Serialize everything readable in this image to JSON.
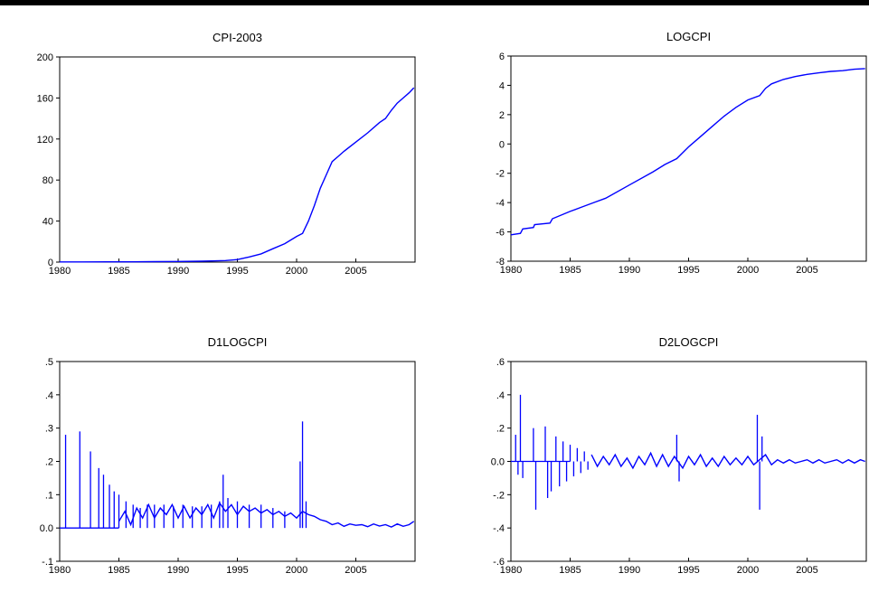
{
  "chart_data": [
    {
      "type": "line",
      "title": "CPI-2003",
      "ylim": [
        0,
        200
      ],
      "yticks": [
        0,
        40,
        80,
        120,
        160,
        200
      ],
      "xlim": [
        1980,
        2010
      ],
      "xticks": [
        1980,
        1985,
        1990,
        1995,
        2000,
        2005
      ],
      "grid": false,
      "color": "#0000ff",
      "series": [
        {
          "x": [
            1980,
            1982,
            1984,
            1986,
            1988,
            1990,
            1992,
            1994,
            1995,
            1996,
            1997,
            1998,
            1999,
            2000,
            2000.5,
            2001,
            2001.5,
            2002,
            2002.5,
            2003,
            2003.5,
            2004,
            2005,
            2006,
            2007,
            2007.5,
            2008,
            2008.5,
            2009,
            2009.5,
            2009.9
          ],
          "y": [
            0.2,
            0.2,
            0.3,
            0.3,
            0.4,
            0.6,
            0.9,
            1.5,
            2.5,
            5,
            8,
            13,
            18,
            25,
            28,
            40,
            55,
            72,
            85,
            98,
            103,
            108,
            117,
            126,
            136,
            140,
            148,
            155,
            160,
            165,
            170
          ]
        }
      ]
    },
    {
      "type": "line",
      "title": "LOGCPI",
      "ylim": [
        -8,
        6
      ],
      "yticks": [
        -8,
        -6,
        -4,
        -2,
        0,
        2,
        4,
        6
      ],
      "xlim": [
        1980,
        2010
      ],
      "xticks": [
        1980,
        1985,
        1990,
        1995,
        2000,
        2005
      ],
      "grid": false,
      "color": "#0000ff",
      "series": [
        {
          "x": [
            1980,
            1980.8,
            1981,
            1981.9,
            1982,
            1983.3,
            1983.5,
            1985,
            1986,
            1987,
            1988,
            1990,
            1992,
            1993,
            1994,
            1995,
            1996,
            1997,
            1998,
            1999,
            2000,
            2001,
            2001.5,
            2002,
            2003,
            2004,
            2005,
            2006,
            2007,
            2008,
            2009,
            2009.9
          ],
          "y": [
            -6.2,
            -6.1,
            -5.8,
            -5.7,
            -5.5,
            -5.4,
            -5.1,
            -4.6,
            -4.3,
            -4.0,
            -3.7,
            -2.8,
            -1.9,
            -1.4,
            -1.0,
            -0.2,
            0.5,
            1.2,
            1.9,
            2.5,
            3.0,
            3.3,
            3.8,
            4.1,
            4.4,
            4.6,
            4.75,
            4.85,
            4.95,
            5.0,
            5.1,
            5.14
          ]
        }
      ]
    },
    {
      "type": "line",
      "title": "D1LOGCPI",
      "ylim": [
        -0.1,
        0.5
      ],
      "yticks": [
        -0.1,
        0.0,
        0.1,
        0.2,
        0.3,
        0.4,
        0.5
      ],
      "ytick_labels": [
        "-.1",
        "0.0",
        ".1",
        ".2",
        ".3",
        ".4",
        ".5"
      ],
      "xlim": [
        1980,
        2010
      ],
      "xticks": [
        1980,
        1985,
        1990,
        1995,
        2000,
        2005
      ],
      "grid": false,
      "color": "#0000ff",
      "spikes": [
        [
          1980.5,
          0.28
        ],
        [
          1981.7,
          0.29
        ],
        [
          1982.6,
          0.23
        ],
        [
          1983.3,
          0.18
        ],
        [
          1983.7,
          0.16
        ],
        [
          1984.2,
          0.13
        ],
        [
          1984.6,
          0.11
        ],
        [
          1985.0,
          0.1
        ],
        [
          1985.6,
          0.08
        ],
        [
          1986.2,
          0.07
        ],
        [
          1986.8,
          0.06
        ],
        [
          1987.4,
          0.07
        ],
        [
          1988.0,
          0.07
        ],
        [
          1988.8,
          0.07
        ],
        [
          1989.6,
          0.065
        ],
        [
          1990.4,
          0.07
        ],
        [
          1991.2,
          0.065
        ],
        [
          1992.0,
          0.065
        ],
        [
          1992.8,
          0.07
        ],
        [
          1993.5,
          0.08
        ],
        [
          1993.8,
          0.16
        ],
        [
          1994.2,
          0.09
        ],
        [
          1995.0,
          0.08
        ],
        [
          1996.0,
          0.07
        ],
        [
          1997.0,
          0.07
        ],
        [
          1998.0,
          0.06
        ],
        [
          1999.0,
          0.05
        ],
        [
          2000.3,
          0.2
        ],
        [
          2000.5,
          0.32
        ],
        [
          2000.8,
          0.08
        ]
      ],
      "series": [
        {
          "x": [
            1985.0,
            1985.5,
            1986.0,
            1986.5,
            1987.0,
            1987.5,
            1988.0,
            1988.5,
            1989.0,
            1989.5,
            1990.0,
            1990.5,
            1991.0,
            1991.5,
            1992.0,
            1992.5,
            1993.0,
            1993.5,
            1994.0,
            1994.5,
            1995.0,
            1995.5,
            1996.0,
            1996.5,
            1997.0,
            1997.5,
            1998.0,
            1998.5,
            1999.0,
            1999.5,
            2000.0,
            2000.5,
            2001.0,
            2001.5,
            2002.0,
            2002.5,
            2003.0,
            2003.5,
            2004.0,
            2004.5,
            2005.0,
            2005.5,
            2006.0,
            2006.5,
            2007.0,
            2007.5,
            2008.0,
            2008.5,
            2009.0,
            2009.5,
            2009.9
          ],
          "y": [
            0.02,
            0.05,
            0.01,
            0.06,
            0.03,
            0.07,
            0.03,
            0.06,
            0.04,
            0.07,
            0.03,
            0.065,
            0.03,
            0.06,
            0.04,
            0.07,
            0.03,
            0.075,
            0.05,
            0.07,
            0.04,
            0.065,
            0.05,
            0.06,
            0.045,
            0.055,
            0.04,
            0.05,
            0.035,
            0.045,
            0.03,
            0.05,
            0.04,
            0.035,
            0.025,
            0.02,
            0.01,
            0.015,
            0.005,
            0.012,
            0.008,
            0.01,
            0.004,
            0.012,
            0.006,
            0.01,
            0.003,
            0.012,
            0.005,
            0.01,
            0.02
          ]
        }
      ]
    },
    {
      "type": "line",
      "title": "D2LOGCPI",
      "ylim": [
        -0.6,
        0.6
      ],
      "yticks": [
        -0.6,
        -0.4,
        -0.2,
        0.0,
        0.2,
        0.4,
        0.6
      ],
      "ytick_labels": [
        "-.6",
        "-.4",
        "-.2",
        "0.0",
        ".2",
        ".4",
        ".6"
      ],
      "xlim": [
        1980,
        2010
      ],
      "xticks": [
        1980,
        1985,
        1990,
        1995,
        2000,
        2005
      ],
      "grid": false,
      "color": "#0000ff",
      "spikes": [
        [
          1980.4,
          0.16
        ],
        [
          1980.6,
          -0.08
        ],
        [
          1980.8,
          0.4
        ],
        [
          1981.0,
          -0.1
        ],
        [
          1981.9,
          0.2
        ],
        [
          1982.1,
          -0.29
        ],
        [
          1982.9,
          0.21
        ],
        [
          1983.1,
          -0.22
        ],
        [
          1983.4,
          -0.18
        ],
        [
          1983.8,
          0.15
        ],
        [
          1984.1,
          -0.15
        ],
        [
          1984.4,
          0.12
        ],
        [
          1984.7,
          -0.12
        ],
        [
          1985.0,
          0.1
        ],
        [
          1985.3,
          -0.09
        ],
        [
          1985.6,
          0.08
        ],
        [
          1985.9,
          -0.07
        ],
        [
          1986.2,
          0.06
        ],
        [
          1986.5,
          -0.05
        ],
        [
          1994.0,
          0.16
        ],
        [
          1994.2,
          -0.12
        ],
        [
          2000.8,
          0.28
        ],
        [
          2001.0,
          -0.29
        ],
        [
          2001.2,
          0.15
        ]
      ],
      "series": [
        {
          "x": [
            1986.8,
            1987.3,
            1987.8,
            1988.3,
            1988.8,
            1989.3,
            1989.8,
            1990.3,
            1990.8,
            1991.3,
            1991.8,
            1992.3,
            1992.8,
            1993.3,
            1993.8,
            1994.5,
            1995.0,
            1995.5,
            1996.0,
            1996.5,
            1997.0,
            1997.5,
            1998.0,
            1998.5,
            1999.0,
            1999.5,
            2000.0,
            2000.5,
            2001.5,
            2002.0,
            2002.5,
            2003.0,
            2003.5,
            2004.0,
            2004.5,
            2005.0,
            2005.5,
            2006.0,
            2006.5,
            2007.0,
            2007.5,
            2008.0,
            2008.5,
            2009.0,
            2009.5,
            2009.9
          ],
          "y": [
            0.04,
            -0.03,
            0.03,
            -0.02,
            0.04,
            -0.03,
            0.02,
            -0.04,
            0.03,
            -0.02,
            0.05,
            -0.03,
            0.04,
            -0.03,
            0.03,
            -0.04,
            0.03,
            -0.02,
            0.04,
            -0.03,
            0.02,
            -0.03,
            0.03,
            -0.02,
            0.02,
            -0.02,
            0.03,
            -0.02,
            0.04,
            -0.02,
            0.01,
            -0.01,
            0.01,
            -0.01,
            0.0,
            0.01,
            -0.01,
            0.01,
            -0.01,
            0.0,
            0.01,
            -0.01,
            0.01,
            -0.01,
            0.01,
            0.0
          ]
        }
      ]
    }
  ]
}
